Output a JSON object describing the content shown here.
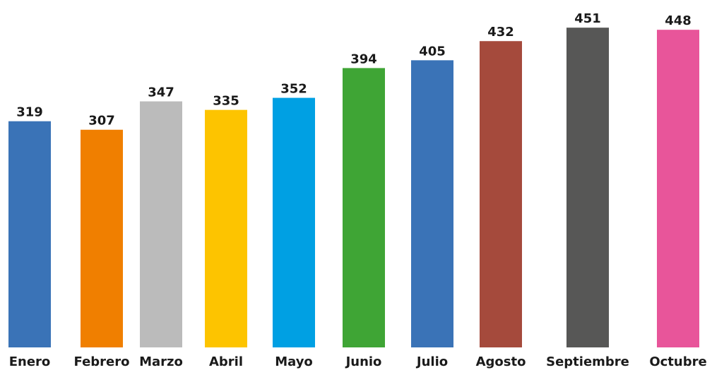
{
  "chart_data": {
    "type": "bar",
    "categories": [
      "Enero",
      "Febrero",
      "Marzo",
      "Abril",
      "Mayo",
      "Junio",
      "Julio",
      "Agosto",
      "Septiembre",
      "Octubre"
    ],
    "values": [
      319,
      307,
      347,
      335,
      352,
      394,
      405,
      432,
      451,
      448
    ],
    "colors": [
      "#3a73b7",
      "#f07f00",
      "#bbbbbb",
      "#fdc400",
      "#00a0e3",
      "#3fa535",
      "#3a73b7",
      "#a54a3c",
      "#575756",
      "#e8559a"
    ],
    "ylim": [
      0,
      490
    ]
  }
}
